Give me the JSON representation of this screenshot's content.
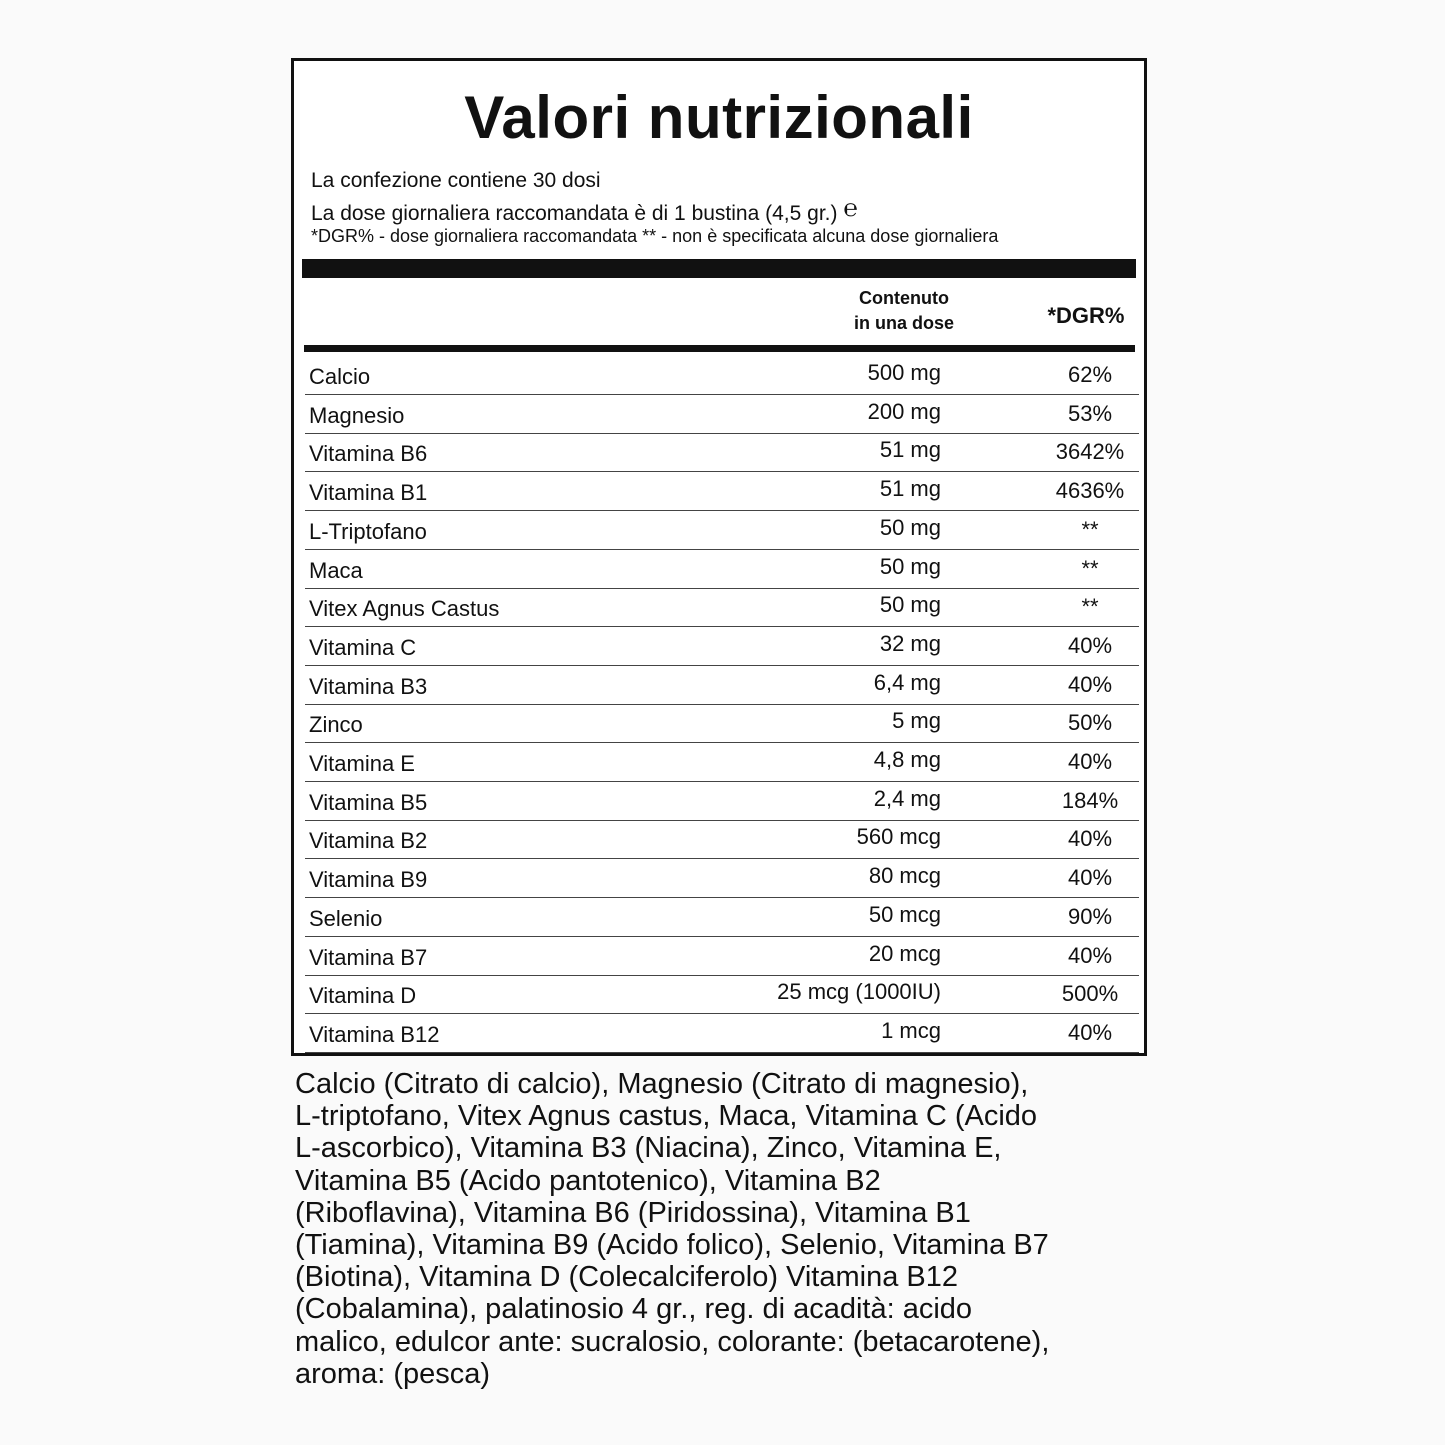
{
  "header": {
    "title": "Valori nutrizionali",
    "lines": [
      "La confezione contiene 30 dosi",
      "La dose giornaliera raccomandata è di 1 bustina (4,5 gr.)",
      "*DGR% - dose giornaliera raccomandata ** - non è specificata alcuna dose giornaliera"
    ],
    "estimated_sign": "℮"
  },
  "table": {
    "columns": [
      [
        "Contenuto",
        "in una dose"
      ],
      "*DGR%"
    ],
    "rows": [
      [
        "Calcio",
        "500 mg",
        "62%"
      ],
      [
        "Magnesio",
        "200 mg",
        "53%"
      ],
      [
        "Vitamina B6",
        "51 mg",
        "3642%"
      ],
      [
        "Vitamina B1",
        "51 mg",
        "4636%"
      ],
      [
        "L-Triptofano",
        "50 mg",
        "**"
      ],
      [
        "Maca",
        "50 mg",
        "**"
      ],
      [
        "Vitex Agnus Castus",
        "50 mg",
        "**"
      ],
      [
        "Vitamina C",
        "32 mg",
        "40%"
      ],
      [
        "Vitamina B3",
        "6,4 mg",
        "40%"
      ],
      [
        "Zinco",
        "5 mg",
        "50%"
      ],
      [
        "Vitamina E",
        "4,8 mg",
        "40%"
      ],
      [
        "Vitamina B5",
        "2,4 mg",
        "184%"
      ],
      [
        "Vitamina B2",
        "560 mcg",
        "40%"
      ],
      [
        "Vitamina B9",
        "80 mcg",
        "40%"
      ],
      [
        "Selenio",
        "50 mcg",
        "90%"
      ],
      [
        "Vitamina B7",
        "20 mcg",
        "40%"
      ],
      [
        "Vitamina D",
        "25 mcg (1000IU)",
        "500%"
      ],
      [
        "Vitamina B12",
        "1 mcg",
        "40%"
      ]
    ]
  },
  "ingredients": {
    "lines": [
      "Calcio (Citrato di calcio), Magnesio (Citrato di magnesio),",
      "L-triptofano, Vitex Agnus castus, Maca, Vitamina C (Acido",
      "L-ascorbico), Vitamina B3 (Niacina), Zinco, Vitamina E,",
      "Vitamina B5 (Acido pantotenico), Vitamina B2",
      "(Riboflavina), Vitamina B6 (Piridossina), Vitamina B1",
      "(Tiamina), Vitamina B9 (Acido folico), Selenio, Vitamina B7",
      "(Biotina), Vitamina D (Colecalciferolo) Vitamina B12",
      "(Cobalamina), palatinosio 4 gr., reg. di acadità: acido",
      "malico, edulcor ante: sucralosio, colorante: (betacarotene),",
      "aroma: (pesca)"
    ]
  }
}
